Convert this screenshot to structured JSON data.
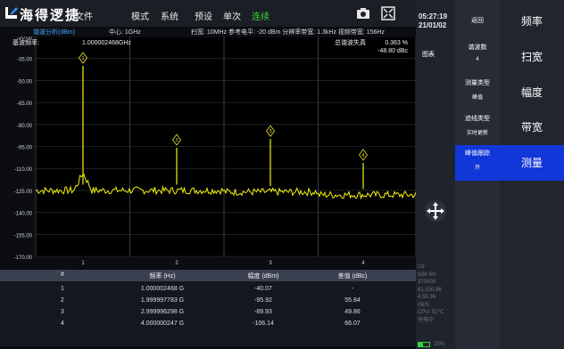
{
  "header": {
    "brand": "海得逻捷",
    "menu": [
      "文件",
      "模式",
      "系统",
      "预设",
      "单次",
      "连续"
    ]
  },
  "info": {
    "mode": "谐波分析(dBm)",
    "center": "中心: 1GHz",
    "params": "扫宽: 10MHz 参考电平: -20 dBm 分辨率带宽: 1.3kHz 视频带宽: 156Hz"
  },
  "plot": {
    "fund_label": "基波频率:",
    "fund_value": "1.000002468GHz",
    "thd_label": "总谐波失真",
    "thd_pct": "0.363 %",
    "thd_dbc": "-48.80 dBc",
    "y_ticks": [
      "-20.00",
      "-35.00",
      "-50.00",
      "-65.00",
      "-80.00",
      "-95.00",
      "-110.00",
      "-125.00",
      "-140.00",
      "-155.00",
      "-170.00"
    ],
    "x_ticks": [
      "1",
      "2",
      "3",
      "4"
    ],
    "markers": [
      "1",
      "2",
      "3",
      "4"
    ],
    "trace_color": "#f2f20a",
    "marker_color": "#e6e63c"
  },
  "chart_data": {
    "type": "bar",
    "title": "",
    "categories": [
      "1",
      "2",
      "3",
      "4"
    ],
    "values": [
      -40.07,
      -95.92,
      -89.93,
      -106.14
    ],
    "ylim": [
      -170,
      -20
    ],
    "noise_floor": [
      -125,
      -125,
      -126,
      -128
    ]
  },
  "table": {
    "headers": [
      "#",
      "频率 (Hz)",
      "幅度 (dBm)",
      "差值 (dBc)"
    ],
    "rows": [
      [
        "1",
        "1.000002468 G",
        "-40.07",
        "-"
      ],
      [
        "2",
        "1.999997783 G",
        "-95.92",
        "55.84"
      ],
      [
        "3",
        "2.999996298 G",
        "-89.93",
        "49.86"
      ],
      [
        "4",
        "4.000000247 G",
        "-106.14",
        "66.07"
      ]
    ]
  },
  "status": {
    "time": "05:27:19",
    "date": "21/01/02",
    "graph_btn": "图表",
    "sys_lines": [
      "U3",
      "N90 R0",
      "370009",
      "81.100.96",
      "4.55.36",
      "0B/S",
      "CPU: 52°C",
      "充电中"
    ],
    "battery": "23%"
  },
  "submenu": {
    "back": "返回",
    "harmonics_label": "谐波数",
    "harmonics_value": "4",
    "meas_type_label": "测量类型",
    "meas_type_value": "峰值",
    "trace_type_label": "迹线类型",
    "trace_type_value": "实时更新",
    "peak_track_label": "峰值跟踪",
    "peak_track_value": "开"
  },
  "rightmenu": [
    "频率",
    "扫宽",
    "幅度",
    "带宽",
    "测量"
  ],
  "colors": {
    "active": "#1237d8",
    "green": "#38d13a",
    "axis_text": "#4aa3ff"
  }
}
